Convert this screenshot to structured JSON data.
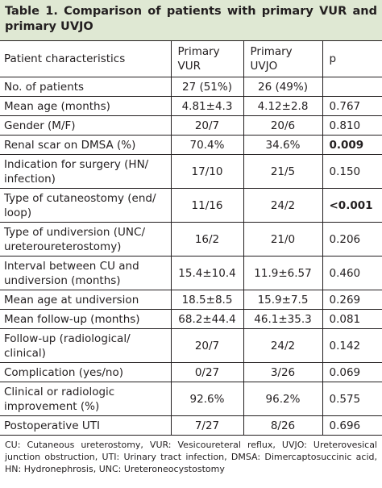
{
  "title": "Table 1. Comparison of patients with primary VUR and primary UVJO",
  "table": {
    "header": [
      "Patient characteristics",
      "Primary VUR",
      "Primary UVJO",
      "p"
    ],
    "rows": [
      [
        "No. of patients",
        "27 (51%)",
        "26 (49%)",
        ""
      ],
      [
        "Mean age (months)",
        "4.81±4.3",
        "4.12±2.8",
        "0.767"
      ],
      [
        "Gender (M/F)",
        "20/7",
        "20/6",
        "0.810"
      ],
      [
        "Renal scar on DMSA (%)",
        "70.4%",
        "34.6%",
        "0.009"
      ],
      [
        "Indication for surgery (HN/ infection)",
        "17/10",
        "21/5",
        "0.150"
      ],
      [
        "Type of cutaneostomy (end/ loop)",
        "11/16",
        "24/2",
        "<0.001"
      ],
      [
        "Type of undiversion (UNC/ ureteroureterostomy)",
        "16/2",
        "21/0",
        "0.206"
      ],
      [
        "Interval between CU and undiversion (months)",
        "15.4±10.4",
        "11.9±6.57",
        "0.460"
      ],
      [
        "Mean age at undiversion",
        "18.5±8.5",
        "15.9±7.5",
        "0.269"
      ],
      [
        "Mean follow-up (months)",
        "68.2±44.4",
        "46.1±35.3",
        "0.081"
      ],
      [
        "Follow-up (radiological/ clinical)",
        "20/7",
        "24/2",
        "0.142"
      ],
      [
        "Complication (yes/no)",
        "0/27",
        "3/26",
        "0.069"
      ],
      [
        "Clinical or radiologic improvement (%)",
        "92.6%",
        "96.2%",
        "0.575"
      ],
      [
        "Postoperative UTI",
        "7/27",
        "8/26",
        "0.696"
      ]
    ]
  },
  "footnote": "CU: Cutaneous ureterostomy, VUR: Vesicoureteral reflux, UVJO: Ureterovesical junction obstruction, UTI: Urinary tract infection, DMSA: Dimercaptosuccinic acid, HN: Hydronephrosis, UNC: Ureteroneocystostomy"
}
